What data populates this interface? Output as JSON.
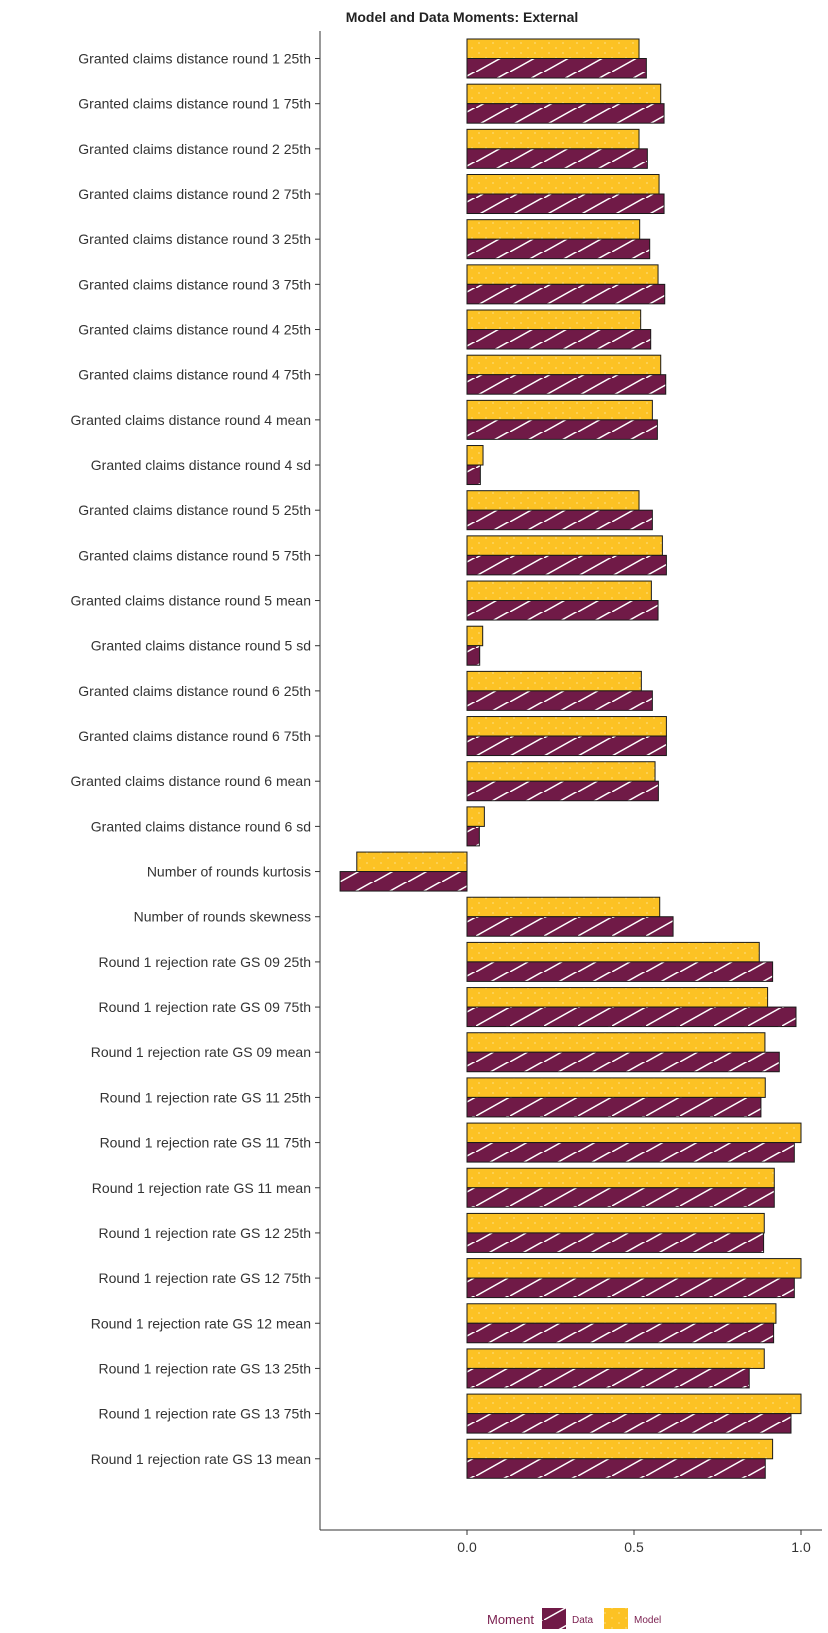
{
  "chart_data": {
    "type": "bar",
    "orientation": "horizontal",
    "title": "Model and Data Moments: External",
    "xlabel": "",
    "ylabel": "",
    "xlim": [
      -0.45,
      1.05
    ],
    "xticks": [
      0.0,
      0.5,
      1.0
    ],
    "xtick_labels": [
      "0.0",
      "0.5",
      "1.0"
    ],
    "grid": false,
    "legend_position": "bottom",
    "legend_title": "Moment",
    "colors": {
      "Data": "#701a47",
      "Model": "#fcc224"
    },
    "categories": [
      "Granted claims distance round 1 25th",
      "Granted claims distance round 1 75th",
      "Granted claims distance round 2 25th",
      "Granted claims distance round 2 75th",
      "Granted claims distance round 3 25th",
      "Granted claims distance round 3 75th",
      "Granted claims distance round 4 25th",
      "Granted claims distance round 4 75th",
      "Granted claims distance round 4 mean",
      "Granted claims distance round 4 sd",
      "Granted claims distance round 5 25th",
      "Granted claims distance round 5 75th",
      "Granted claims distance round 5 mean",
      "Granted claims distance round 5 sd",
      "Granted claims distance round 6 25th",
      "Granted claims distance round 6 75th",
      "Granted claims distance round 6 mean",
      "Granted claims distance round 6 sd",
      "Number of rounds kurtosis",
      "Number of rounds skewness",
      "Round 1 rejection rate GS 09 25th",
      "Round 1 rejection rate GS 09 75th",
      "Round 1 rejection rate GS 09 mean",
      "Round 1 rejection rate GS 11 25th",
      "Round 1 rejection rate GS 11 75th",
      "Round 1 rejection rate GS 11 mean",
      "Round 1 rejection rate GS 12 25th",
      "Round 1 rejection rate GS 12 75th",
      "Round 1 rejection rate GS 12 mean",
      "Round 1 rejection rate GS 13 25th",
      "Round 1 rejection rate GS 13 75th",
      "Round 1 rejection rate GS 13 mean"
    ],
    "series": [
      {
        "name": "Model",
        "values": [
          0.515,
          0.58,
          0.515,
          0.575,
          0.517,
          0.572,
          0.52,
          0.58,
          0.555,
          0.048,
          0.515,
          0.585,
          0.552,
          0.047,
          0.522,
          0.597,
          0.563,
          0.052,
          -0.33,
          0.577,
          0.875,
          0.9,
          0.892,
          0.893,
          1.0,
          0.92,
          0.89,
          1.0,
          0.925,
          0.89,
          1.0,
          0.915
        ]
      },
      {
        "name": "Data",
        "values": [
          0.537,
          0.59,
          0.54,
          0.59,
          0.547,
          0.592,
          0.55,
          0.595,
          0.57,
          0.04,
          0.555,
          0.597,
          0.572,
          0.038,
          0.555,
          0.597,
          0.573,
          0.037,
          -0.38,
          0.617,
          0.915,
          0.985,
          0.935,
          0.88,
          0.98,
          0.92,
          0.888,
          0.98,
          0.918,
          0.845,
          0.97,
          0.893
        ]
      }
    ]
  }
}
